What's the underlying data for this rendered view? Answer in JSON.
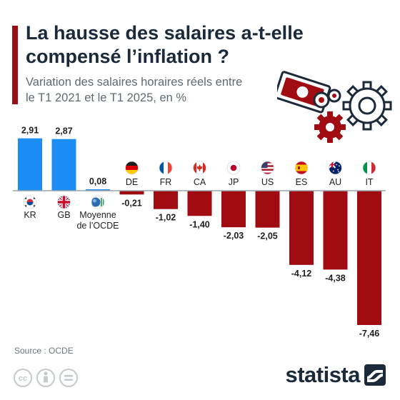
{
  "header": {
    "title": "La hausse des salaires a-t-elle compensé l’inflation ?",
    "subtitle": "Variation des salaires horaires réels entre le T1 2021 et le T1 2025, en %"
  },
  "chart_data": {
    "type": "bar",
    "title": "La hausse des salaires a-t-elle compensé l’inflation ?",
    "subtitle": "Variation des salaires horaires réels entre le T1 2021 et le T1 2025, en %",
    "categories": [
      "KR",
      "GB",
      "Moyenne de l’OCDE",
      "DE",
      "FR",
      "CA",
      "JP",
      "US",
      "ES",
      "AU",
      "IT"
    ],
    "values": [
      2.91,
      2.87,
      0.08,
      -0.21,
      -1.02,
      -1.4,
      -2.03,
      -2.05,
      -4.12,
      -4.38,
      -7.46
    ],
    "value_labels": [
      "2,91",
      "2,87",
      "0,08",
      "-0,21",
      "-1,02",
      "-1,40",
      "-2,03",
      "-2,05",
      "-4,12",
      "-4,38",
      "-7,46"
    ],
    "flag_icons": [
      "south-korea-flag-icon",
      "united-kingdom-flag-icon",
      "oecd-logo-icon",
      "germany-flag-icon",
      "france-flag-icon",
      "canada-flag-icon",
      "japan-flag-icon",
      "united-states-flag-icon",
      "spain-flag-icon",
      "australia-flag-icon",
      "italy-flag-icon"
    ],
    "ylim": [
      -7.46,
      2.91
    ],
    "grid": false,
    "legend": "none",
    "colors": {
      "positive": "#1c8df5",
      "negative": "#a10c12",
      "baseline": "#9aa3ab"
    }
  },
  "footer": {
    "source": "Source : OCDE",
    "brand": "statista",
    "license_icons": [
      "creative-commons-icon",
      "attribution-icon",
      "no-derivatives-icon"
    ]
  }
}
